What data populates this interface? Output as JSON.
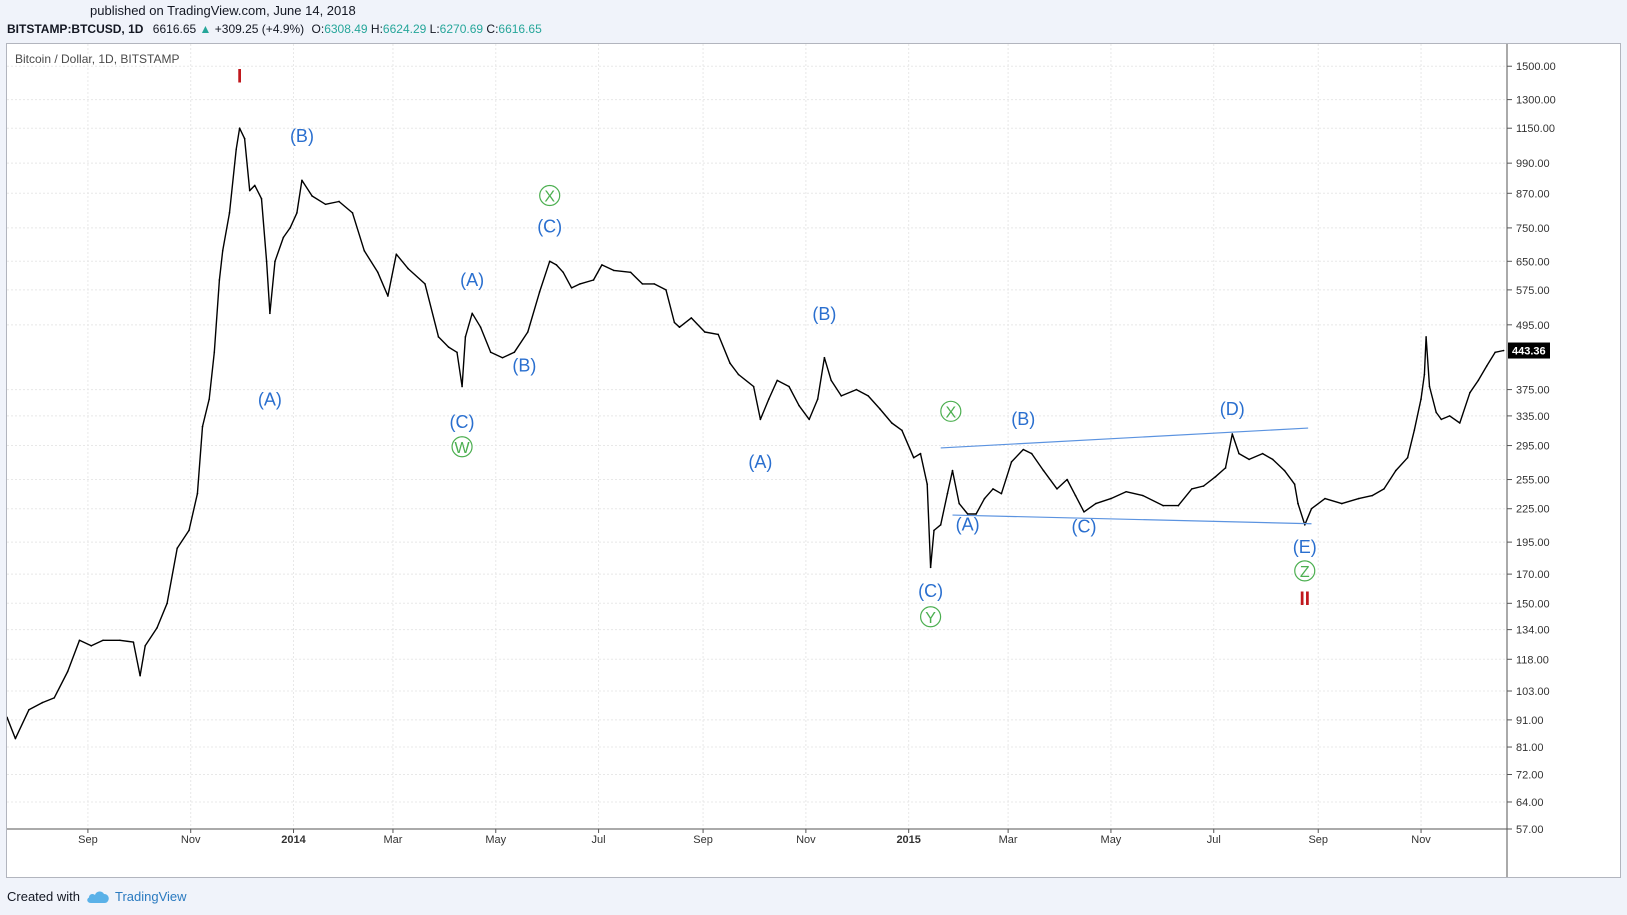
{
  "header": {
    "published": "published on TradingView.com, June 14, 2018",
    "symbol": "BITSTAMP:BTCUSD, 1D",
    "last": "6616.65",
    "change": "+309.25 (+4.9%)",
    "open_label": "O:",
    "open": "6308.49",
    "high_label": "H:",
    "high": "6624.29",
    "low_label": "L:",
    "low": "6270.69",
    "close_label": "C:",
    "close": "6616.65"
  },
  "footer": {
    "created_with": "Created with",
    "brand": "TradingView"
  },
  "colors": {
    "wave_blue": "#2a6fcf",
    "wave_green": "#4caf50",
    "wave_red": "#c0181d",
    "trendline": "#5b93e0",
    "candle": "#000000",
    "grid": "#e8e8e8"
  },
  "chart_data": {
    "type": "line",
    "title": "Bitcoin / Dollar, 1D, BITSTAMP",
    "y_scale": "log",
    "ylim": [
      57,
      1650
    ],
    "y_ticks": [
      1500,
      1300,
      1150,
      990,
      870,
      750,
      650,
      575,
      495,
      375,
      335,
      295,
      255,
      225,
      195,
      170,
      150,
      134,
      118,
      103,
      91,
      81,
      72,
      64,
      57
    ],
    "y_tick_labels": [
      "1500.00",
      "1300.00",
      "1150.00",
      "990.00",
      "870.00",
      "750.00",
      "650.00",
      "575.00",
      "495.00",
      "375.00",
      "335.00",
      "295.00",
      "255.00",
      "225.00",
      "195.00",
      "170.00",
      "150.00",
      "134.00",
      "118.00",
      "103.00",
      "91.00",
      "81.00",
      "72.00",
      "64.00",
      "57.00"
    ],
    "last_price": 443.36,
    "last_price_label": "443.36",
    "x_ticks": [
      {
        "date": "2013-09-01",
        "label": "Sep",
        "bold": false
      },
      {
        "date": "2013-11-01",
        "label": "Nov",
        "bold": false
      },
      {
        "date": "2014-01-01",
        "label": "2014",
        "bold": true
      },
      {
        "date": "2014-03-01",
        "label": "Mar",
        "bold": false
      },
      {
        "date": "2014-05-01",
        "label": "May",
        "bold": false
      },
      {
        "date": "2014-07-01",
        "label": "Jul",
        "bold": false
      },
      {
        "date": "2014-09-01",
        "label": "Sep",
        "bold": false
      },
      {
        "date": "2014-11-01",
        "label": "Nov",
        "bold": false
      },
      {
        "date": "2015-01-01",
        "label": "2015",
        "bold": true
      },
      {
        "date": "2015-03-01",
        "label": "Mar",
        "bold": false
      },
      {
        "date": "2015-05-01",
        "label": "May",
        "bold": false
      },
      {
        "date": "2015-07-01",
        "label": "Jul",
        "bold": false
      },
      {
        "date": "2015-09-01",
        "label": "Sep",
        "bold": false
      },
      {
        "date": "2015-11-01",
        "label": "Nov",
        "bold": false
      }
    ],
    "x_range": [
      "2013-07-15",
      "2015-12-22"
    ],
    "series": [
      {
        "points": [
          [
            "2013-07-15",
            92
          ],
          [
            "2013-07-20",
            84
          ],
          [
            "2013-07-28",
            95
          ],
          [
            "2013-08-05",
            98
          ],
          [
            "2013-08-12",
            100
          ],
          [
            "2013-08-20",
            112
          ],
          [
            "2013-08-27",
            128
          ],
          [
            "2013-09-03",
            125
          ],
          [
            "2013-09-10",
            128
          ],
          [
            "2013-09-20",
            128
          ],
          [
            "2013-09-28",
            127
          ],
          [
            "2013-10-02",
            110
          ],
          [
            "2013-10-05",
            125
          ],
          [
            "2013-10-12",
            135
          ],
          [
            "2013-10-18",
            150
          ],
          [
            "2013-10-24",
            190
          ],
          [
            "2013-10-31",
            205
          ],
          [
            "2013-11-05",
            240
          ],
          [
            "2013-11-08",
            320
          ],
          [
            "2013-11-12",
            360
          ],
          [
            "2013-11-15",
            440
          ],
          [
            "2013-11-18",
            600
          ],
          [
            "2013-11-20",
            680
          ],
          [
            "2013-11-24",
            800
          ],
          [
            "2013-11-28",
            1050
          ],
          [
            "2013-11-30",
            1150
          ],
          [
            "2013-12-03",
            1100
          ],
          [
            "2013-12-06",
            880
          ],
          [
            "2013-12-09",
            900
          ],
          [
            "2013-12-13",
            850
          ],
          [
            "2013-12-16",
            650
          ],
          [
            "2013-12-18",
            520
          ],
          [
            "2013-12-21",
            650
          ],
          [
            "2013-12-26",
            720
          ],
          [
            "2013-12-30",
            750
          ],
          [
            "2014-01-03",
            800
          ],
          [
            "2014-01-06",
            920
          ],
          [
            "2014-01-12",
            860
          ],
          [
            "2014-01-20",
            830
          ],
          [
            "2014-01-28",
            840
          ],
          [
            "2014-02-05",
            800
          ],
          [
            "2014-02-12",
            680
          ],
          [
            "2014-02-20",
            620
          ],
          [
            "2014-02-26",
            560
          ],
          [
            "2014-03-03",
            670
          ],
          [
            "2014-03-10",
            630
          ],
          [
            "2014-03-20",
            590
          ],
          [
            "2014-03-28",
            470
          ],
          [
            "2014-04-03",
            450
          ],
          [
            "2014-04-08",
            440
          ],
          [
            "2014-04-11",
            380
          ],
          [
            "2014-04-13",
            470
          ],
          [
            "2014-04-17",
            520
          ],
          [
            "2014-04-22",
            490
          ],
          [
            "2014-04-28",
            440
          ],
          [
            "2014-05-05",
            430
          ],
          [
            "2014-05-12",
            440
          ],
          [
            "2014-05-20",
            480
          ],
          [
            "2014-05-27",
            570
          ],
          [
            "2014-06-02",
            650
          ],
          [
            "2014-06-06",
            640
          ],
          [
            "2014-06-10",
            620
          ],
          [
            "2014-06-15",
            580
          ],
          [
            "2014-06-20",
            590
          ],
          [
            "2014-06-28",
            600
          ],
          [
            "2014-07-03",
            640
          ],
          [
            "2014-07-10",
            625
          ],
          [
            "2014-07-20",
            620
          ],
          [
            "2014-07-27",
            590
          ],
          [
            "2014-08-03",
            590
          ],
          [
            "2014-08-10",
            575
          ],
          [
            "2014-08-15",
            500
          ],
          [
            "2014-08-18",
            490
          ],
          [
            "2014-08-25",
            510
          ],
          [
            "2014-09-02",
            480
          ],
          [
            "2014-09-10",
            475
          ],
          [
            "2014-09-17",
            420
          ],
          [
            "2014-09-22",
            400
          ],
          [
            "2014-10-01",
            380
          ],
          [
            "2014-10-05",
            330
          ],
          [
            "2014-10-10",
            360
          ],
          [
            "2014-10-15",
            390
          ],
          [
            "2014-10-22",
            380
          ],
          [
            "2014-10-28",
            350
          ],
          [
            "2014-11-03",
            330
          ],
          [
            "2014-11-08",
            360
          ],
          [
            "2014-11-12",
            430
          ],
          [
            "2014-11-16",
            390
          ],
          [
            "2014-11-22",
            365
          ],
          [
            "2014-12-01",
            375
          ],
          [
            "2014-12-08",
            365
          ],
          [
            "2014-12-15",
            345
          ],
          [
            "2014-12-22",
            325
          ],
          [
            "2014-12-28",
            315
          ],
          [
            "2015-01-04",
            280
          ],
          [
            "2015-01-08",
            285
          ],
          [
            "2015-01-12",
            250
          ],
          [
            "2015-01-14",
            175
          ],
          [
            "2015-01-16",
            205
          ],
          [
            "2015-01-20",
            210
          ],
          [
            "2015-01-24",
            240
          ],
          [
            "2015-01-27",
            265
          ],
          [
            "2015-01-31",
            230
          ],
          [
            "2015-02-05",
            220
          ],
          [
            "2015-02-10",
            220
          ],
          [
            "2015-02-15",
            235
          ],
          [
            "2015-02-20",
            245
          ],
          [
            "2015-02-25",
            240
          ],
          [
            "2015-03-03",
            275
          ],
          [
            "2015-03-10",
            290
          ],
          [
            "2015-03-15",
            285
          ],
          [
            "2015-03-22",
            265
          ],
          [
            "2015-03-30",
            245
          ],
          [
            "2015-04-05",
            255
          ],
          [
            "2015-04-10",
            238
          ],
          [
            "2015-04-15",
            222
          ],
          [
            "2015-04-22",
            230
          ],
          [
            "2015-05-01",
            235
          ],
          [
            "2015-05-10",
            242
          ],
          [
            "2015-05-20",
            238
          ],
          [
            "2015-06-01",
            228
          ],
          [
            "2015-06-10",
            228
          ],
          [
            "2015-06-18",
            245
          ],
          [
            "2015-06-25",
            248
          ],
          [
            "2015-07-02",
            258
          ],
          [
            "2015-07-08",
            268
          ],
          [
            "2015-07-12",
            310
          ],
          [
            "2015-07-16",
            285
          ],
          [
            "2015-07-22",
            278
          ],
          [
            "2015-07-30",
            285
          ],
          [
            "2015-08-05",
            278
          ],
          [
            "2015-08-12",
            265
          ],
          [
            "2015-08-18",
            250
          ],
          [
            "2015-08-20",
            230
          ],
          [
            "2015-08-24",
            210
          ],
          [
            "2015-08-28",
            225
          ],
          [
            "2015-09-05",
            235
          ],
          [
            "2015-09-15",
            230
          ],
          [
            "2015-09-25",
            235
          ],
          [
            "2015-10-03",
            238
          ],
          [
            "2015-10-10",
            245
          ],
          [
            "2015-10-17",
            265
          ],
          [
            "2015-10-24",
            280
          ],
          [
            "2015-10-28",
            315
          ],
          [
            "2015-11-01",
            360
          ],
          [
            "2015-11-03",
            400
          ],
          [
            "2015-11-04",
            470
          ],
          [
            "2015-11-06",
            380
          ],
          [
            "2015-11-10",
            340
          ],
          [
            "2015-11-13",
            330
          ],
          [
            "2015-11-18",
            335
          ],
          [
            "2015-11-24",
            325
          ],
          [
            "2015-11-30",
            370
          ],
          [
            "2015-12-05",
            390
          ],
          [
            "2015-12-10",
            415
          ],
          [
            "2015-12-15",
            440
          ],
          [
            "2015-12-20",
            443.36
          ]
        ]
      }
    ],
    "annotations": [
      {
        "text": "I",
        "date": "2013-11-30",
        "value": 1400,
        "color": "red"
      },
      {
        "text": "(A)",
        "date": "2013-12-18",
        "value": 350,
        "color": "blue"
      },
      {
        "text": "(B)",
        "date": "2014-01-06",
        "value": 1085,
        "color": "blue"
      },
      {
        "text": "(C)",
        "date": "2014-04-11",
        "value": 318,
        "color": "blue"
      },
      {
        "text": "W",
        "date": "2014-04-11",
        "value": 286,
        "color": "green",
        "circled": true
      },
      {
        "text": "(A)",
        "date": "2014-04-17",
        "value": 585,
        "color": "blue"
      },
      {
        "text": "(B)",
        "date": "2014-05-18",
        "value": 405,
        "color": "blue"
      },
      {
        "text": "X",
        "date": "2014-06-02",
        "value": 840,
        "color": "green",
        "circled": true
      },
      {
        "text": "(C)",
        "date": "2014-06-02",
        "value": 735,
        "color": "blue"
      },
      {
        "text": "(A)",
        "date": "2014-10-05",
        "value": 268,
        "color": "blue"
      },
      {
        "text": "(B)",
        "date": "2014-11-12",
        "value": 505,
        "color": "blue"
      },
      {
        "text": "(C)",
        "date": "2015-01-14",
        "value": 154,
        "color": "blue"
      },
      {
        "text": "Y",
        "date": "2015-01-14",
        "value": 138,
        "color": "green",
        "circled": true
      },
      {
        "text": "X",
        "date": "2015-01-26",
        "value": 333,
        "color": "green",
        "circled": true
      },
      {
        "text": "(A)",
        "date": "2015-02-05",
        "value": 205,
        "color": "blue"
      },
      {
        "text": "(B)",
        "date": "2015-03-10",
        "value": 322,
        "color": "blue"
      },
      {
        "text": "(C)",
        "date": "2015-04-15",
        "value": 203,
        "color": "blue"
      },
      {
        "text": "(D)",
        "date": "2015-07-12",
        "value": 336,
        "color": "blue"
      },
      {
        "text": "(E)",
        "date": "2015-08-24",
        "value": 186,
        "color": "blue"
      },
      {
        "text": "Z",
        "date": "2015-08-24",
        "value": 168,
        "color": "green",
        "circled": true
      },
      {
        "text": "II",
        "date": "2015-08-24",
        "value": 149,
        "color": "red"
      }
    ],
    "trendlines": [
      {
        "from": [
          "2015-01-20",
          292
        ],
        "to": [
          "2015-08-26",
          318
        ]
      },
      {
        "from": [
          "2015-01-27",
          219
        ],
        "to": [
          "2015-08-28",
          211
        ]
      }
    ],
    "grid": true
  }
}
